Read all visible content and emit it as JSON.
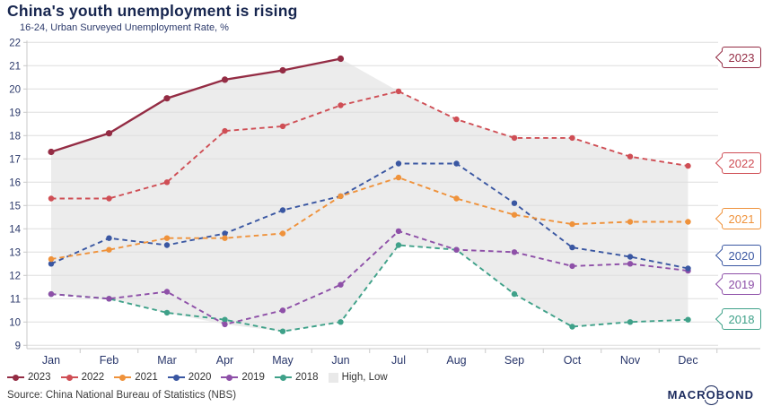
{
  "header": {
    "title": "China's youth unemployment is rising",
    "subtitle": "16-24, Urban Surveyed Unemployment Rate, %"
  },
  "chart_data": {
    "type": "line",
    "title": "China's youth unemployment is rising",
    "subtitle": "16-24, Urban Surveyed Unemployment Rate, %",
    "categories": [
      "Jan",
      "Feb",
      "Mar",
      "Apr",
      "May",
      "Jun",
      "Jul",
      "Aug",
      "Sep",
      "Oct",
      "Nov",
      "Dec"
    ],
    "ylim": [
      9,
      22
    ],
    "y_ticks": [
      9,
      10,
      11,
      12,
      13,
      14,
      15,
      16,
      17,
      18,
      19,
      20,
      21,
      22
    ],
    "grid": true,
    "legend_position": "bottom",
    "series": [
      {
        "name": "2023",
        "color": "#942c44",
        "style": "solid",
        "values": [
          17.3,
          18.1,
          19.6,
          20.4,
          20.8,
          21.3,
          null,
          null,
          null,
          null,
          null,
          null
        ]
      },
      {
        "name": "2022",
        "color": "#cf4e55",
        "style": "dashed",
        "values": [
          15.3,
          15.3,
          16.0,
          18.2,
          18.4,
          19.3,
          19.9,
          18.7,
          17.9,
          17.9,
          17.1,
          16.7
        ]
      },
      {
        "name": "2021",
        "color": "#ef923b",
        "style": "dashed",
        "values": [
          12.7,
          13.1,
          13.6,
          13.6,
          13.8,
          15.4,
          16.2,
          15.3,
          14.6,
          14.2,
          14.3,
          14.3
        ]
      },
      {
        "name": "2020",
        "color": "#3a57a2",
        "style": "dashed",
        "values": [
          12.5,
          13.6,
          13.3,
          13.8,
          14.8,
          15.4,
          16.8,
          16.8,
          15.1,
          13.2,
          12.8,
          12.3
        ]
      },
      {
        "name": "2019",
        "color": "#8e50a8",
        "style": "dashed",
        "values": [
          11.2,
          11.0,
          11.3,
          9.9,
          10.5,
          11.6,
          13.9,
          13.1,
          13.0,
          12.4,
          12.5,
          12.2
        ]
      },
      {
        "name": "2018",
        "color": "#3fa189",
        "style": "dashed",
        "values": [
          11.2,
          11.0,
          10.4,
          10.1,
          9.6,
          10.0,
          13.3,
          13.1,
          11.2,
          9.8,
          10.0,
          10.1
        ]
      }
    ],
    "band": {
      "name": "High, Low",
      "color": "#ececec",
      "high": [
        17.3,
        18.1,
        19.6,
        20.4,
        20.8,
        21.3,
        19.9,
        18.7,
        17.9,
        17.9,
        17.1,
        16.7
      ],
      "low": [
        11.2,
        11.0,
        10.4,
        9.9,
        9.6,
        10.0,
        13.3,
        13.1,
        11.2,
        9.8,
        10.0,
        10.1
      ]
    },
    "end_labels": [
      "2023",
      "2022",
      "2021",
      "2020",
      "2019",
      "2018"
    ]
  },
  "footer": {
    "source": "Source: China National Bureau of Statistics (NBS)",
    "brand": "MACROBOND"
  }
}
